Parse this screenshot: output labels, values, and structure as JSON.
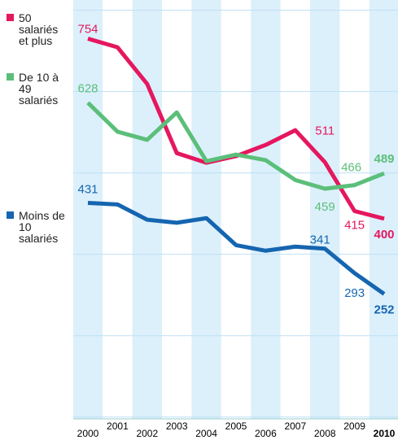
{
  "chart_data": {
    "type": "line",
    "x": [
      "2000",
      "2001",
      "2002",
      "2003",
      "2004",
      "2005",
      "2006",
      "2007",
      "2008",
      "2009",
      "2010"
    ],
    "series": [
      {
        "name": "50 salariés et plus",
        "color": "#e5175f",
        "values": [
          754,
          737,
          665,
          529,
          510,
          523,
          545,
          574,
          511,
          415,
          400
        ],
        "value_labels": [
          "754",
          null,
          null,
          null,
          null,
          null,
          null,
          null,
          "511",
          "415",
          "400"
        ]
      },
      {
        "name": "De 10 à 49 salariés",
        "color": "#5bbf7a",
        "values": [
          628,
          571,
          555,
          609,
          513,
          526,
          515,
          476,
          459,
          466,
          489
        ],
        "value_labels": [
          "628",
          null,
          null,
          null,
          null,
          null,
          null,
          null,
          "459",
          "466",
          "489"
        ]
      },
      {
        "name": "Moins de 10 salariés",
        "color": "#1565b0",
        "values": [
          431,
          428,
          398,
          392,
          401,
          348,
          337,
          345,
          341,
          293,
          252
        ],
        "value_labels": [
          "431",
          null,
          null,
          null,
          null,
          null,
          null,
          null,
          "341",
          "293",
          "252"
        ]
      }
    ],
    "ylim": [
      0,
      830
    ],
    "yticks": [
      10,
      170,
      330,
      490,
      650,
      810
    ],
    "grid": true
  }
}
